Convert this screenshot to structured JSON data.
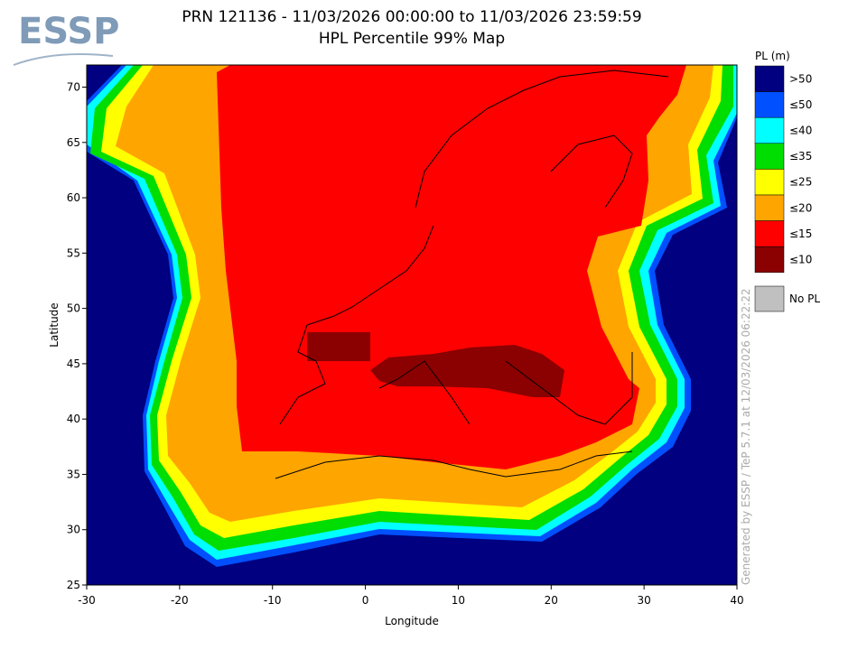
{
  "logo": "ESSP",
  "chart_data": {
    "type": "map",
    "title": [
      "PRN 121136 - 11/03/2026 00:00:00 to 11/03/2026 23:59:59",
      "HPL Percentile 99% Map"
    ],
    "x_label": "Longitude",
    "y_label": "Latitude",
    "xlim": [
      -30,
      40
    ],
    "ylim": [
      25,
      72
    ],
    "xticks": [
      -30,
      -20,
      -10,
      0,
      10,
      20,
      30,
      40
    ],
    "yticks": [
      25,
      30,
      35,
      40,
      45,
      50,
      55,
      60,
      65,
      70
    ],
    "legend_title": "PL (m)",
    "legend": [
      {
        "label": ">50",
        "color": "#000080"
      },
      {
        "label": "≤50",
        "color": "#0050ff"
      },
      {
        "label": "≤40",
        "color": "#00ffff"
      },
      {
        "label": "≤35",
        "color": "#00dd00"
      },
      {
        "label": "≤25",
        "color": "#ffff00"
      },
      {
        "label": "≤20",
        "color": "#ffa500"
      },
      {
        "label": "≤15",
        "color": "#ff0000"
      },
      {
        "label": "≤10",
        "color": "#8b0000"
      }
    ],
    "no_data": {
      "label": "No PL",
      "color": "#c0c0c0"
    },
    "note": "Generated by ESSP / TeP 5.7.1 at 12/03/2026 06:22:22"
  }
}
